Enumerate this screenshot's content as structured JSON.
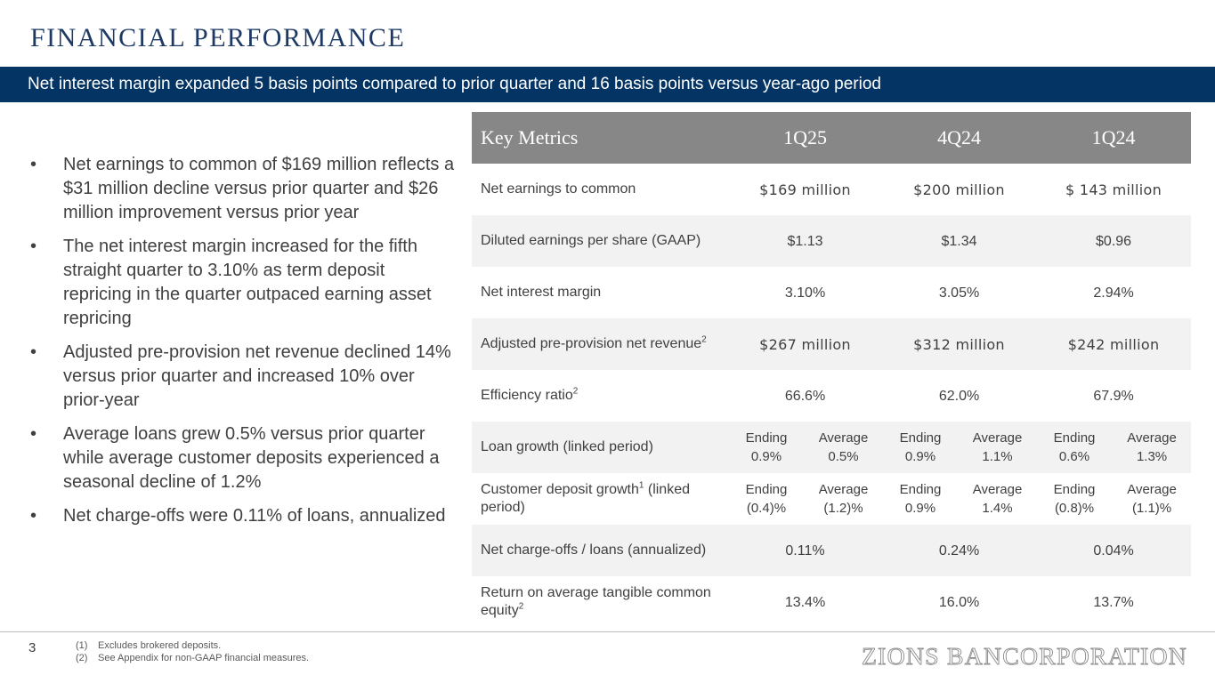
{
  "header": {
    "title": "FINANCIAL PERFORMANCE",
    "banner": "Net interest margin expanded 5 basis points compared to prior quarter and 16 basis points versus year-ago period"
  },
  "bullets": [
    "Net earnings to common of $169 million reflects a $31 million decline versus prior quarter and $26 million improvement versus prior year",
    "The net interest margin increased for the fifth straight quarter to 3.10% as term deposit repricing in the quarter outpaced earning asset repricing",
    "Adjusted pre-provision net revenue declined 14% versus prior quarter and increased 10% over prior-year",
    "Average loans grew 0.5% versus prior quarter while average customer deposits experienced a seasonal decline of 1.2%",
    "Net charge-offs were 0.11% of loans, annualized"
  ],
  "bullet_marker": "•",
  "table": {
    "headers": [
      "Key Metrics",
      "1Q25",
      "4Q24",
      "1Q24"
    ],
    "rows": [
      {
        "label": "Net earnings to common",
        "values": [
          "$169 million",
          "$200 million",
          "$ 143 million"
        ]
      },
      {
        "label": "Diluted earnings per share (GAAP)",
        "values": [
          "$1.13",
          "$1.34",
          "$0.96"
        ]
      },
      {
        "label": "Net interest margin",
        "values": [
          "3.10%",
          "3.05%",
          "2.94%"
        ]
      },
      {
        "label": "Adjusted pre-provision net revenue",
        "sup": "2",
        "values": [
          "$267 million",
          "$312 million",
          "$242 million"
        ]
      },
      {
        "label": "Efficiency ratio",
        "sup": "2",
        "values": [
          "66.6%",
          "62.0%",
          "67.9%"
        ]
      },
      {
        "label": "Loan growth (linked period)",
        "split": [
          {
            "k": "Ending",
            "v": "0.9%"
          },
          {
            "k": "Average",
            "v": "0.5%"
          },
          {
            "k": "Ending",
            "v": "0.9%"
          },
          {
            "k": "Average",
            "v": "1.1%"
          },
          {
            "k": "Ending",
            "v": "0.6%"
          },
          {
            "k": "Average",
            "v": "1.3%"
          }
        ]
      },
      {
        "label": "Customer deposit growth",
        "sup": "1",
        "label_suffix": " (linked period)",
        "split": [
          {
            "k": "Ending",
            "v": "(0.4)%"
          },
          {
            "k": "Average",
            "v": "(1.2)%"
          },
          {
            "k": "Ending",
            "v": "0.9%"
          },
          {
            "k": "Average",
            "v": "1.4%"
          },
          {
            "k": "Ending",
            "v": "(0.8)%"
          },
          {
            "k": "Average",
            "v": "(1.1)%"
          }
        ]
      },
      {
        "label": "Net charge-offs / loans (annualized)",
        "values": [
          "0.11%",
          "0.24%",
          "0.04%"
        ]
      },
      {
        "label": "Return on average tangible common equity",
        "sup": "2",
        "values": [
          "13.4%",
          "16.0%",
          "13.7%"
        ]
      }
    ]
  },
  "footer": {
    "page_number": "3",
    "footnotes": [
      {
        "num": "(1)",
        "text": "Excludes brokered deposits."
      },
      {
        "num": "(2)",
        "text": "See Appendix for non-GAAP financial measures."
      }
    ],
    "logo_text": "ZIONS BANCORPORATION"
  },
  "colors": {
    "title": "#1e3a64",
    "banner": "#043464",
    "table_header": "#878787",
    "row_shade": "#f2f2f2"
  }
}
